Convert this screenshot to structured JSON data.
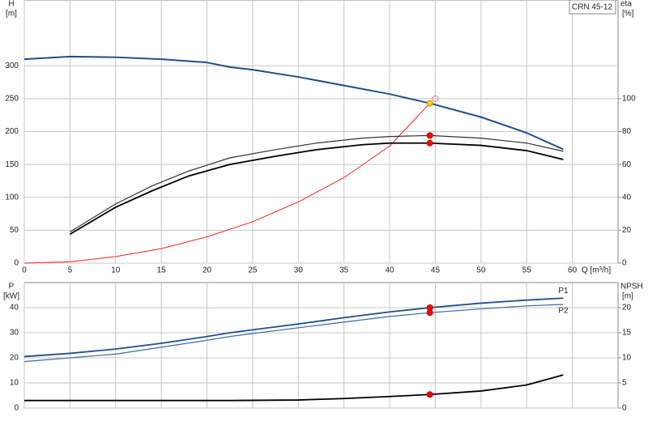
{
  "chart_data": [
    {
      "type": "line",
      "title": "CRN 45-12",
      "y_label": "H",
      "y_unit": "[m]",
      "y2_label": "eta",
      "y2_unit": "[%]",
      "x_label": "Q [m³/h]",
      "xlim": [
        0,
        65
      ],
      "xticks": [
        0,
        5,
        10,
        15,
        20,
        25,
        30,
        35,
        40,
        45,
        50,
        55,
        60
      ],
      "ylim": [
        0,
        400
      ],
      "yticks": [
        0,
        50,
        100,
        150,
        200,
        250,
        300
      ],
      "y2lim": [
        0,
        160
      ],
      "y2ticks": [
        0,
        20,
        40,
        60,
        80,
        100
      ],
      "grid": true,
      "series": [
        {
          "color": "#1f4e8c",
          "width": 2,
          "x": [
            0,
            5,
            10,
            15,
            20,
            22.5,
            25,
            30,
            35,
            40,
            44.4,
            50,
            55,
            59
          ],
          "values": [
            310,
            314,
            313,
            310,
            305,
            298,
            294,
            283,
            270,
            257,
            243,
            222,
            198,
            173
          ]
        },
        {
          "color": "#ff2020",
          "width": 1,
          "x": [
            0,
            5,
            10,
            15,
            20,
            25,
            30,
            35,
            40,
            44.4
          ],
          "values": [
            0,
            2,
            10,
            22,
            40,
            63,
            93,
            130,
            178,
            243
          ]
        },
        {
          "color": "#333333",
          "width": 1.2,
          "axis": "y2",
          "x": [
            5,
            10,
            14,
            18,
            22.5,
            27.5,
            32,
            37,
            40,
            44.4,
            50,
            55,
            59
          ],
          "values": [
            19,
            36,
            47,
            56,
            64,
            69,
            73,
            76,
            77,
            77.6,
            76,
            73,
            68
          ]
        },
        {
          "color": "#000000",
          "width": 1.8,
          "axis": "y2",
          "x": [
            5,
            10,
            14,
            18,
            22.5,
            27.5,
            32,
            37,
            40,
            44.4,
            50,
            55,
            59
          ],
          "values": [
            17.6,
            34,
            44,
            53,
            60,
            65,
            69,
            72,
            73,
            73,
            71.6,
            68.4,
            63
          ]
        }
      ],
      "markers": [
        {
          "x": 45,
          "value": 250,
          "color": "none",
          "stroke": "#e070c0"
        },
        {
          "x": 44.4,
          "value": 243,
          "color": "#ffd700",
          "stroke": "#e08000"
        },
        {
          "x": 44.4,
          "value": 77.6,
          "axis": "y2",
          "color": "#ff0000",
          "stroke": "#c00000"
        },
        {
          "x": 44.4,
          "value": 73,
          "axis": "y2",
          "color": "#ff0000",
          "stroke": "#c00000"
        }
      ]
    },
    {
      "type": "line",
      "y_label": "P",
      "y_unit": "[kW]",
      "y2_label": "NPSH",
      "y2_unit": "[m]",
      "xlim": [
        0,
        65
      ],
      "xticks": [
        0,
        5,
        10,
        15,
        20,
        25,
        30,
        35,
        40,
        45,
        50,
        55,
        60
      ],
      "ylim": [
        0,
        50
      ],
      "yticks": [
        0,
        10,
        20,
        30,
        40
      ],
      "y2lim": [
        0,
        25
      ],
      "y2ticks": [
        0,
        5,
        10,
        15,
        20
      ],
      "grid": true,
      "series": [
        {
          "name": "P1",
          "color": "#1f4e8c",
          "width": 1.8,
          "x": [
            0,
            5,
            10,
            15,
            20,
            22.5,
            30,
            35,
            40,
            44.4,
            50,
            55,
            59
          ],
          "values": [
            20.5,
            21.8,
            23.5,
            25.8,
            28.5,
            30,
            33.5,
            36,
            38.3,
            40,
            41.8,
            43,
            43.8
          ]
        },
        {
          "name": "P2",
          "color": "#3a6aa0",
          "width": 1.2,
          "x": [
            0,
            10,
            20,
            22.5,
            30,
            40,
            44.4,
            50,
            55,
            59
          ],
          "values": [
            18.5,
            21.5,
            27,
            28.5,
            32,
            36.5,
            38,
            39.5,
            40.7,
            41.3
          ]
        },
        {
          "color": "#000000",
          "width": 1.8,
          "axis": "y2",
          "x": [
            0,
            22.5,
            30,
            35,
            40,
            44.4,
            50,
            55,
            59
          ],
          "values": [
            1.5,
            1.5,
            1.6,
            1.9,
            2.3,
            2.7,
            3.4,
            4.6,
            6.6
          ]
        }
      ],
      "markers": [
        {
          "x": 44.4,
          "value": 40,
          "color": "#ff0000",
          "stroke": "#c00000"
        },
        {
          "x": 44.4,
          "value": 38,
          "color": "#ff0000",
          "stroke": "#c00000"
        },
        {
          "x": 44.4,
          "value": 2.7,
          "axis": "y2",
          "color": "#ff0000",
          "stroke": "#c00000"
        }
      ]
    }
  ]
}
